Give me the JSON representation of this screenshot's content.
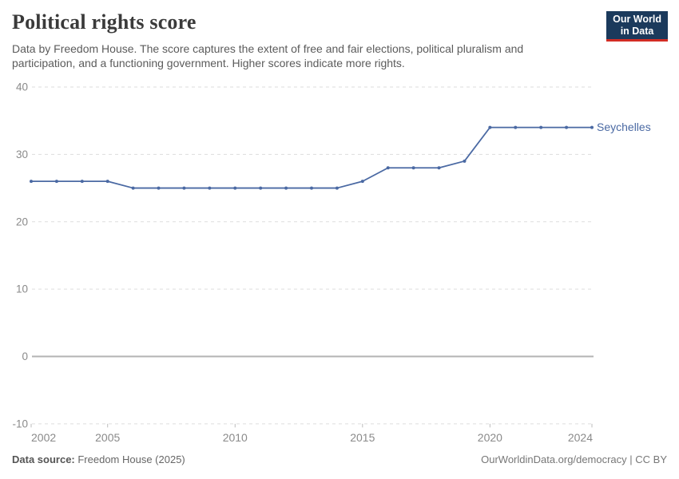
{
  "header": {
    "title": "Political rights score",
    "subtitle": "Data by Freedom House. The score captures the extent of free and fair elections, political pluralism and participation, and a functioning government. Higher scores indicate more rights."
  },
  "logo": {
    "line1": "Our World",
    "line2": "in Data",
    "bg_color": "#1B3A5C",
    "accent_color": "#D22C24"
  },
  "chart_data": {
    "type": "line",
    "title": "Political rights score",
    "entity_label": "Seychelles",
    "x": [
      2002,
      2003,
      2004,
      2005,
      2006,
      2007,
      2008,
      2009,
      2010,
      2011,
      2012,
      2013,
      2014,
      2015,
      2016,
      2017,
      2018,
      2019,
      2020,
      2021,
      2022,
      2023,
      2024
    ],
    "series": [
      {
        "name": "Seychelles",
        "color": "#4A69A3",
        "values": [
          26,
          26,
          26,
          26,
          25,
          25,
          25,
          25,
          25,
          25,
          25,
          25,
          25,
          26,
          28,
          28,
          28,
          29,
          34,
          34,
          34,
          34,
          34
        ]
      }
    ],
    "ylim": [
      -10,
      40
    ],
    "yticks": [
      -10,
      0,
      10,
      20,
      30,
      40
    ],
    "xticks": [
      2002,
      2005,
      2010,
      2015,
      2020,
      2024
    ],
    "grid": "horizontal dashed, solid line at zero",
    "legend_position": "end-of-line label",
    "colors": {
      "grid": "#DDDDDD",
      "zero_line": "#B3B3B3",
      "tick": "#BBBBBB",
      "axis_text": "#8A8A8A"
    }
  },
  "footer": {
    "source_label": "Data source:",
    "source_value": " Freedom House (2025)",
    "link": "OurWorldinData.org/democracy | CC BY"
  }
}
